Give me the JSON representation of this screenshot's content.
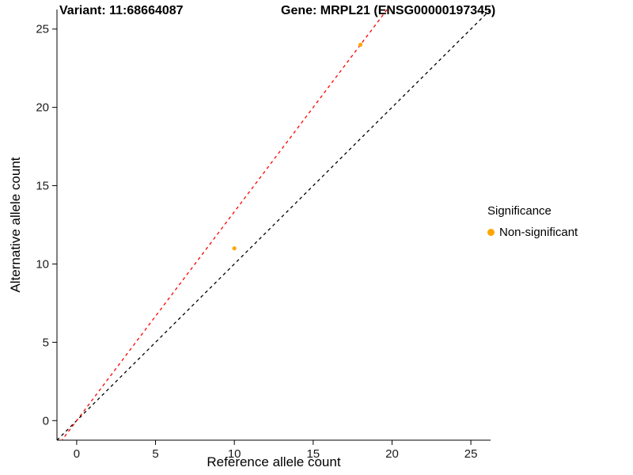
{
  "chart_data": {
    "type": "scatter",
    "title_left": "Variant: 11:68664087",
    "title_right": "Gene: MRPL21 (ENSG00000197345)",
    "xlabel": "Reference allele count",
    "ylabel": "Alternative allele count",
    "x_ticks": [
      0,
      5,
      10,
      15,
      20,
      25
    ],
    "y_ticks": [
      0,
      5,
      10,
      15,
      20,
      25
    ],
    "x_range": [
      -1.25,
      26.25
    ],
    "y_range": [
      -1.25,
      26.25
    ],
    "points": [
      {
        "x": 10,
        "y": 11
      },
      {
        "x": 18,
        "y": 24
      }
    ],
    "point_color": "#FFA500",
    "lines": [
      {
        "name": "identity",
        "slope": 1.0,
        "intercept": 0,
        "color": "#000000",
        "dash": "4 4"
      },
      {
        "name": "fitted-ratio",
        "slope": 1.3333,
        "intercept": 0,
        "color": "#FF0000",
        "dash": "4 4"
      }
    ],
    "legend": {
      "title": "Significance",
      "items": [
        {
          "label": "Non-significant",
          "color": "#FFA500"
        }
      ]
    }
  }
}
